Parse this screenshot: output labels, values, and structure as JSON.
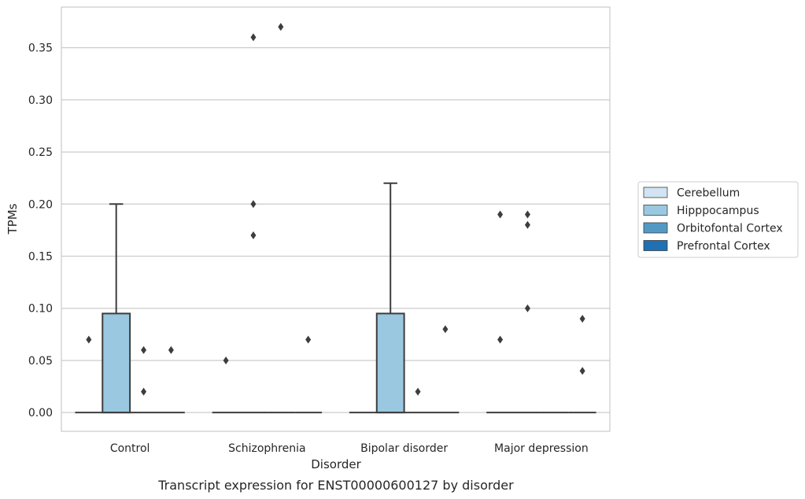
{
  "chart_data": {
    "type": "box",
    "caption": "Transcript expression for ENST00000600127 by disorder",
    "xlabel": "Disorder",
    "ylabel": "TPMs",
    "ylim": [
      -0.018,
      0.389
    ],
    "yticks": [
      0.0,
      0.05,
      0.1,
      0.15,
      0.2,
      0.25,
      0.3,
      0.35
    ],
    "ytick_labels": [
      "0.00",
      "0.05",
      "0.10",
      "0.15",
      "0.20",
      "0.25",
      "0.30",
      "0.35"
    ],
    "grid": "horizontal",
    "legend_position": "right",
    "categories": [
      "Control",
      "Schizophrenia",
      "Bipolar disorder",
      "Major depression"
    ],
    "series": [
      {
        "name": "Cerebellum",
        "color": "#d2e3f3",
        "boxes": [
          {
            "q1": 0,
            "median": 0,
            "q3": 0,
            "whisker_low": 0,
            "whisker_high": 0,
            "outliers": [
              0.07
            ]
          },
          {
            "q1": 0,
            "median": 0,
            "q3": 0,
            "whisker_low": 0,
            "whisker_high": 0,
            "outliers": [
              0.05
            ]
          },
          {
            "q1": 0,
            "median": 0,
            "q3": 0,
            "whisker_low": 0,
            "whisker_high": 0,
            "outliers": []
          },
          {
            "q1": 0,
            "median": 0,
            "q3": 0,
            "whisker_low": 0,
            "whisker_high": 0,
            "outliers": [
              0.19,
              0.07
            ]
          }
        ]
      },
      {
        "name": "Hipppocampus",
        "color": "#9ac8e0",
        "boxes": [
          {
            "q1": 0,
            "median": 0,
            "q3": 0.095,
            "whisker_low": 0,
            "whisker_high": 0.2,
            "outliers": []
          },
          {
            "q1": 0,
            "median": 0,
            "q3": 0,
            "whisker_low": 0,
            "whisker_high": 0,
            "outliers": [
              0.36,
              0.2,
              0.17
            ]
          },
          {
            "q1": 0,
            "median": 0,
            "q3": 0.095,
            "whisker_low": 0,
            "whisker_high": 0.22,
            "outliers": []
          },
          {
            "q1": 0,
            "median": 0,
            "q3": 0,
            "whisker_low": 0,
            "whisker_high": 0,
            "outliers": [
              0.19,
              0.18,
              0.1
            ]
          }
        ]
      },
      {
        "name": "Orbitofontal Cortex",
        "color": "#5299c6",
        "boxes": [
          {
            "q1": 0,
            "median": 0,
            "q3": 0,
            "whisker_low": 0,
            "whisker_high": 0,
            "outliers": [
              0.06,
              0.02
            ]
          },
          {
            "q1": 0,
            "median": 0,
            "q3": 0,
            "whisker_low": 0,
            "whisker_high": 0,
            "outliers": [
              0.37
            ]
          },
          {
            "q1": 0,
            "median": 0,
            "q3": 0,
            "whisker_low": 0,
            "whisker_high": 0,
            "outliers": [
              0.02
            ]
          },
          {
            "q1": 0,
            "median": 0,
            "q3": 0,
            "whisker_low": 0,
            "whisker_high": 0,
            "outliers": []
          }
        ]
      },
      {
        "name": "Prefrontal Cortex",
        "color": "#2070b4",
        "boxes": [
          {
            "q1": 0,
            "median": 0,
            "q3": 0,
            "whisker_low": 0,
            "whisker_high": 0,
            "outliers": [
              0.06
            ]
          },
          {
            "q1": 0,
            "median": 0,
            "q3": 0,
            "whisker_low": 0,
            "whisker_high": 0,
            "outliers": [
              0.07
            ]
          },
          {
            "q1": 0,
            "median": 0,
            "q3": 0,
            "whisker_low": 0,
            "whisker_high": 0,
            "outliers": [
              0.08
            ]
          },
          {
            "q1": 0,
            "median": 0,
            "q3": 0,
            "whisker_low": 0,
            "whisker_high": 0,
            "outliers": [
              0.09,
              0.04
            ]
          }
        ]
      }
    ]
  }
}
